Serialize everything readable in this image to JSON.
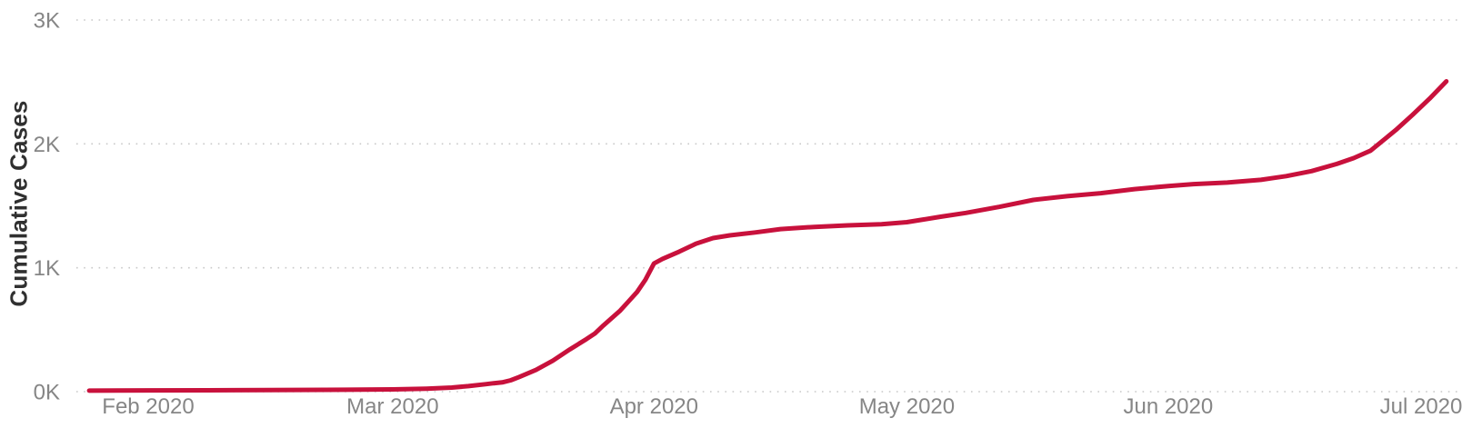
{
  "chart_data": {
    "type": "line",
    "title": "",
    "xlabel": "",
    "ylabel": "Cumulative Cases",
    "series_name": "Cumulative Cases",
    "legend": "none",
    "grid": "horizontal-dotted",
    "ylim": [
      0,
      3000
    ],
    "y_ticks": [
      0,
      1000,
      2000,
      3000
    ],
    "y_tick_labels": [
      "0K",
      "1K",
      "2K",
      "3K"
    ],
    "x_ticks": [
      {
        "label": "Feb 2020",
        "date": "2020-02-01"
      },
      {
        "label": "Mar 2020",
        "date": "2020-03-01"
      },
      {
        "label": "Apr 2020",
        "date": "2020-04-01"
      },
      {
        "label": "May 2020",
        "date": "2020-05-01"
      },
      {
        "label": "Jun 2020",
        "date": "2020-06-01"
      },
      {
        "label": "Jul 2020",
        "date": "2020-07-01"
      }
    ],
    "x_range": [
      "2020-01-25",
      "2020-07-04"
    ],
    "points": [
      [
        "2020-01-25",
        8
      ],
      [
        "2020-02-01",
        10
      ],
      [
        "2020-02-08",
        11
      ],
      [
        "2020-02-15",
        13
      ],
      [
        "2020-02-22",
        15
      ],
      [
        "2020-03-01",
        18
      ],
      [
        "2020-03-05",
        24
      ],
      [
        "2020-03-08",
        33
      ],
      [
        "2020-03-10",
        45
      ],
      [
        "2020-03-12",
        60
      ],
      [
        "2020-03-13",
        68
      ],
      [
        "2020-03-14",
        75
      ],
      [
        "2020-03-15",
        92
      ],
      [
        "2020-03-16",
        118
      ],
      [
        "2020-03-18",
        175
      ],
      [
        "2020-03-20",
        250
      ],
      [
        "2020-03-22",
        340
      ],
      [
        "2020-03-24",
        425
      ],
      [
        "2020-03-25",
        470
      ],
      [
        "2020-03-26",
        535
      ],
      [
        "2020-03-28",
        655
      ],
      [
        "2020-03-29",
        730
      ],
      [
        "2020-03-30",
        805
      ],
      [
        "2020-03-31",
        905
      ],
      [
        "2020-04-01",
        1035
      ],
      [
        "2020-04-02",
        1072
      ],
      [
        "2020-04-04",
        1130
      ],
      [
        "2020-04-06",
        1195
      ],
      [
        "2020-04-08",
        1240
      ],
      [
        "2020-04-10",
        1262
      ],
      [
        "2020-04-13",
        1285
      ],
      [
        "2020-04-16",
        1312
      ],
      [
        "2020-04-20",
        1330
      ],
      [
        "2020-04-24",
        1342
      ],
      [
        "2020-04-28",
        1352
      ],
      [
        "2020-05-01",
        1368
      ],
      [
        "2020-05-03",
        1390
      ],
      [
        "2020-05-05",
        1412
      ],
      [
        "2020-05-08",
        1443
      ],
      [
        "2020-05-12",
        1492
      ],
      [
        "2020-05-16",
        1548
      ],
      [
        "2020-05-20",
        1578
      ],
      [
        "2020-05-24",
        1602
      ],
      [
        "2020-05-28",
        1635
      ],
      [
        "2020-06-01",
        1660
      ],
      [
        "2020-06-04",
        1675
      ],
      [
        "2020-06-08",
        1688
      ],
      [
        "2020-06-12",
        1710
      ],
      [
        "2020-06-15",
        1740
      ],
      [
        "2020-06-18",
        1780
      ],
      [
        "2020-06-21",
        1838
      ],
      [
        "2020-06-23",
        1885
      ],
      [
        "2020-06-25",
        1945
      ],
      [
        "2020-06-26",
        2000
      ],
      [
        "2020-06-28",
        2112
      ],
      [
        "2020-06-30",
        2235
      ],
      [
        "2020-07-02",
        2365
      ],
      [
        "2020-07-04",
        2505
      ]
    ]
  },
  "colors": {
    "line": "#C8113C",
    "gridline": "#C9C9C9",
    "tick_text": "#868686",
    "axis_title_text": "#303030",
    "background": "#FFFFFF"
  }
}
